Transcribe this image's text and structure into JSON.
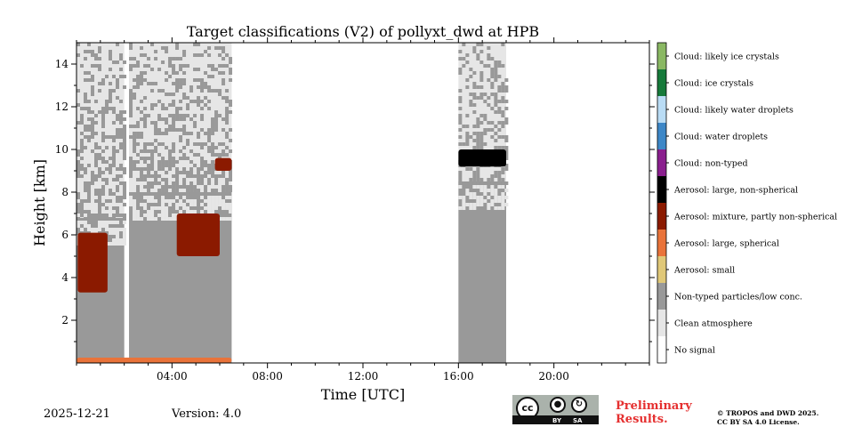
{
  "chart_data": {
    "type": "heatmap",
    "title": "Target classifications (V2) of pollyxt_dwd at HPB",
    "xlabel": "Time [UTC]",
    "ylabel": "Height [km]",
    "xlim": [
      0,
      24
    ],
    "ylim": [
      0,
      15
    ],
    "x_ticks": [
      {
        "v": 4,
        "label": "04:00"
      },
      {
        "v": 8,
        "label": "08:00"
      },
      {
        "v": 12,
        "label": "12:00"
      },
      {
        "v": 16,
        "label": "16:00"
      },
      {
        "v": 20,
        "label": "20:00"
      }
    ],
    "y_ticks": [
      {
        "v": 2,
        "label": "2"
      },
      {
        "v": 4,
        "label": "4"
      },
      {
        "v": 6,
        "label": "6"
      },
      {
        "v": 8,
        "label": "8"
      },
      {
        "v": 10,
        "label": "10"
      },
      {
        "v": 12,
        "label": "12"
      },
      {
        "v": 14,
        "label": "14"
      }
    ],
    "classes": [
      {
        "label": "No signal",
        "color": "#ffffff"
      },
      {
        "label": "Clean atmosphere",
        "color": "#e6e6e6"
      },
      {
        "label": "Non-typed particles/low conc.",
        "color": "#999999"
      },
      {
        "label": "Aerosol: small",
        "color": "#e0c878"
      },
      {
        "label": "Aerosol: large, spherical",
        "color": "#e9733a"
      },
      {
        "label": "Aerosol: mixture, partly non-spherical",
        "color": "#8b1a00"
      },
      {
        "label": "Aerosol: large, non-spherical",
        "color": "#000000"
      },
      {
        "label": "Cloud: non-typed",
        "color": "#8a1f8e"
      },
      {
        "label": "Cloud: water droplets",
        "color": "#3d87c7"
      },
      {
        "label": "Cloud: likely water droplets",
        "color": "#b9dcf5"
      },
      {
        "label": "Cloud: ice crystals",
        "color": "#167a3a"
      },
      {
        "label": "Cloud: likely ice crystals",
        "color": "#8ab863"
      }
    ],
    "segments": [
      {
        "t0": 0.0,
        "t1": 2.0,
        "h_max": 15,
        "clean_above": 6.8
      },
      {
        "t0": 2.2,
        "t1": 6.5,
        "h_max": 15,
        "clean_above": 8.0
      },
      {
        "t0": 16.0,
        "t1": 18.0,
        "h_max": 15,
        "clean_above": 8.5
      }
    ],
    "features": [
      {
        "class": "Aerosol: mixture, partly non-spherical",
        "t0": 0.05,
        "t1": 1.3,
        "h0": 3.3,
        "h1": 6.1
      },
      {
        "class": "Aerosol: mixture, partly non-spherical",
        "t0": 5.8,
        "t1": 6.5,
        "h0": 9.0,
        "h1": 9.6
      },
      {
        "class": "Aerosol: mixture, partly non-spherical",
        "t0": 4.2,
        "t1": 6.0,
        "h0": 5.0,
        "h1": 7.0
      },
      {
        "class": "Aerosol: large, non-spherical",
        "t0": 16.0,
        "t1": 18.0,
        "h0": 9.2,
        "h1": 10.0
      },
      {
        "class": "Aerosol: large, spherical",
        "t0": 0.0,
        "t1": 6.5,
        "h0": 0.0,
        "h1": 0.25
      }
    ]
  },
  "footer": {
    "date": "2025-12-21",
    "version": "Version: 4.0",
    "license_badge": {
      "left": "BY",
      "right": "SA",
      "cc": "cc"
    },
    "preliminary_line1": "Preliminary",
    "preliminary_line2": "Results.",
    "copyright_line1": "© TROPOS and DWD 2025.",
    "copyright_line2": "CC BY SA 4.0 License."
  }
}
